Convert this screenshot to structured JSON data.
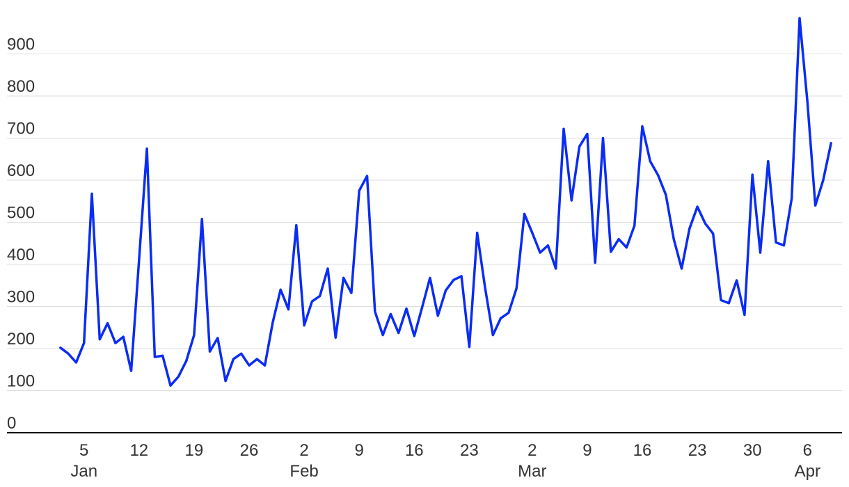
{
  "chart_data": {
    "type": "line",
    "title": "",
    "xlabel": "",
    "ylabel": "",
    "ylim": [
      0,
      1000
    ],
    "y_ticks": [
      0,
      100,
      200,
      300,
      400,
      500,
      600,
      700,
      800,
      900
    ],
    "grid": true,
    "legend": "none",
    "x_ticks": [
      {
        "date": "2020-01-05",
        "label": "5",
        "month": "Jan"
      },
      {
        "date": "2020-01-12",
        "label": "12",
        "month": ""
      },
      {
        "date": "2020-01-19",
        "label": "19",
        "month": ""
      },
      {
        "date": "2020-01-26",
        "label": "26",
        "month": ""
      },
      {
        "date": "2020-02-02",
        "label": "2",
        "month": "Feb"
      },
      {
        "date": "2020-02-09",
        "label": "9",
        "month": ""
      },
      {
        "date": "2020-02-16",
        "label": "16",
        "month": ""
      },
      {
        "date": "2020-02-23",
        "label": "23",
        "month": ""
      },
      {
        "date": "2020-03-02",
        "label": "2",
        "month": "Mar"
      },
      {
        "date": "2020-03-09",
        "label": "9",
        "month": ""
      },
      {
        "date": "2020-03-16",
        "label": "16",
        "month": ""
      },
      {
        "date": "2020-03-23",
        "label": "23",
        "month": ""
      },
      {
        "date": "2020-03-30",
        "label": "30",
        "month": ""
      },
      {
        "date": "2020-04-06",
        "label": "6",
        "month": "Apr"
      }
    ],
    "x_start": "2020-01-02",
    "series": [
      {
        "color": "#0a2cf5",
        "values": [
          202,
          188,
          167,
          213,
          568,
          222,
          260,
          213,
          228,
          147,
          410,
          675,
          180,
          183,
          112,
          133,
          170,
          232,
          508,
          193,
          225,
          123,
          175,
          188,
          160,
          175,
          160,
          262,
          340,
          293,
          493,
          255,
          312,
          325,
          390,
          226,
          368,
          332,
          575,
          610,
          288,
          232,
          282,
          237,
          295,
          230,
          298,
          368,
          278,
          338,
          363,
          372,
          204,
          475,
          345,
          232,
          272,
          285,
          343,
          520,
          475,
          428,
          445,
          390,
          722,
          552,
          680,
          710,
          404,
          700,
          430,
          460,
          440,
          492,
          728,
          645,
          612,
          565,
          460,
          390,
          485,
          537,
          497,
          473,
          315,
          308,
          362,
          280,
          613,
          428,
          645,
          452,
          445,
          557,
          985,
          785,
          540,
          600,
          688
        ]
      }
    ]
  }
}
